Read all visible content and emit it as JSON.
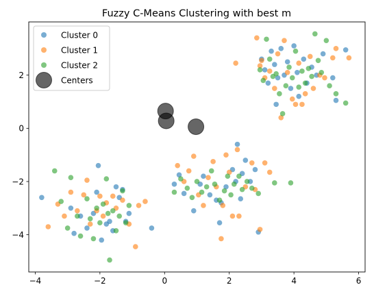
{
  "chart_data": {
    "type": "scatter",
    "title": "Fuzzy C-Means Clustering with best m",
    "xlabel": "",
    "ylabel": "",
    "xlim": [
      -4.2,
      6.2
    ],
    "ylim": [
      -5.4,
      4.0
    ],
    "xticks": [
      -4,
      -2,
      0,
      2,
      4,
      6
    ],
    "yticks": [
      -4,
      -2,
      0,
      2
    ],
    "grid": false,
    "legend_position": "top-left",
    "series": [
      {
        "name": "Cluster 0",
        "color": "#1f77b4",
        "points": [
          [
            -3.8,
            -2.6
          ],
          [
            -2.9,
            -3.0
          ],
          [
            -2.8,
            -3.95
          ],
          [
            -2.6,
            -3.3
          ],
          [
            -2.4,
            -3.75
          ],
          [
            -2.2,
            -3.2
          ],
          [
            -2.1,
            -2.4
          ],
          [
            -2.05,
            -1.4
          ],
          [
            -1.95,
            -4.2
          ],
          [
            -1.8,
            -3.6
          ],
          [
            -1.7,
            -3.5
          ],
          [
            -1.6,
            -3.85
          ],
          [
            -1.5,
            -2.2
          ],
          [
            -1.4,
            -2.6
          ],
          [
            -1.3,
            -2.3
          ],
          [
            -1.2,
            -3.5
          ],
          [
            -1.1,
            -3.2
          ],
          [
            -0.4,
            -3.75
          ],
          [
            0.3,
            -2.1
          ],
          [
            0.45,
            -1.75
          ],
          [
            0.6,
            -2.45
          ],
          [
            0.9,
            -3.1
          ],
          [
            1.1,
            -2.1
          ],
          [
            1.2,
            -1.8
          ],
          [
            1.4,
            -2.5
          ],
          [
            1.6,
            -2.7
          ],
          [
            1.7,
            -3.55
          ],
          [
            1.75,
            -2.8
          ],
          [
            1.9,
            -2.2
          ],
          [
            2.1,
            -1.55
          ],
          [
            2.2,
            -2.0
          ],
          [
            2.25,
            -0.6
          ],
          [
            2.35,
            -2.65
          ],
          [
            2.4,
            -1.7
          ],
          [
            2.5,
            -1.2
          ],
          [
            2.65,
            -2.0
          ],
          [
            2.8,
            -1.55
          ],
          [
            2.9,
            -3.9
          ],
          [
            3.0,
            2.6
          ],
          [
            3.1,
            2.2
          ],
          [
            3.2,
            1.7
          ],
          [
            3.3,
            2.9
          ],
          [
            3.4,
            2.4
          ],
          [
            3.45,
            0.9
          ],
          [
            3.5,
            1.9
          ],
          [
            3.6,
            3.0
          ],
          [
            3.7,
            2.0
          ],
          [
            3.8,
            2.5
          ],
          [
            3.9,
            1.5
          ],
          [
            4.0,
            3.1
          ],
          [
            4.1,
            2.1
          ],
          [
            4.15,
            1.2
          ],
          [
            4.3,
            2.6
          ],
          [
            4.4,
            1.7
          ],
          [
            4.55,
            2.3
          ],
          [
            4.7,
            2.0
          ],
          [
            4.9,
            2.8
          ],
          [
            5.2,
            1.9
          ],
          [
            5.3,
            1.05
          ],
          [
            5.6,
            2.95
          ]
        ]
      },
      {
        "name": "Cluster 1",
        "color": "#ff7f0e",
        "points": [
          [
            -3.6,
            -3.7
          ],
          [
            -3.3,
            -2.85
          ],
          [
            -3.1,
            -3.3
          ],
          [
            -2.9,
            -2.4
          ],
          [
            -2.7,
            -3.1
          ],
          [
            -2.5,
            -2.5
          ],
          [
            -2.4,
            -1.95
          ],
          [
            -2.3,
            -3.6
          ],
          [
            -2.1,
            -3.1
          ],
          [
            -2.0,
            -2.55
          ],
          [
            -1.9,
            -3.3
          ],
          [
            -1.8,
            -2.8
          ],
          [
            -1.6,
            -2.55
          ],
          [
            -1.5,
            -3.0
          ],
          [
            -1.3,
            -2.7
          ],
          [
            -1.1,
            -3.6
          ],
          [
            -0.9,
            -4.45
          ],
          [
            -0.8,
            -2.9
          ],
          [
            -0.6,
            -2.75
          ],
          [
            0.4,
            -1.4
          ],
          [
            0.6,
            -2.0
          ],
          [
            0.75,
            -1.6
          ],
          [
            0.9,
            -1.05
          ],
          [
            1.05,
            -2.5
          ],
          [
            1.2,
            -2.9
          ],
          [
            1.35,
            -1.85
          ],
          [
            1.5,
            -1.25
          ],
          [
            1.6,
            -2.2
          ],
          [
            1.75,
            -4.15
          ],
          [
            1.8,
            -2.9
          ],
          [
            1.9,
            -1.0
          ],
          [
            2.0,
            -1.65
          ],
          [
            2.1,
            -3.3
          ],
          [
            2.25,
            -0.8
          ],
          [
            2.3,
            -3.3
          ],
          [
            2.5,
            -2.2
          ],
          [
            2.7,
            -1.3
          ],
          [
            2.8,
            -2.3
          ],
          [
            2.95,
            -3.8
          ],
          [
            3.1,
            -1.3
          ],
          [
            3.25,
            -1.65
          ],
          [
            2.2,
            2.45
          ],
          [
            2.85,
            3.4
          ],
          [
            2.95,
            2.35
          ],
          [
            3.0,
            2.55
          ],
          [
            3.1,
            1.9
          ],
          [
            3.25,
            2.15
          ],
          [
            3.4,
            1.5
          ],
          [
            3.5,
            2.8
          ],
          [
            3.6,
            0.4
          ],
          [
            3.7,
            3.3
          ],
          [
            3.8,
            2.1
          ],
          [
            3.95,
            1.1
          ],
          [
            4.05,
            0.9
          ],
          [
            4.15,
            2.45
          ],
          [
            4.25,
            0.9
          ],
          [
            4.35,
            1.3
          ],
          [
            4.5,
            2.7
          ],
          [
            4.6,
            1.5
          ],
          [
            4.8,
            2.0
          ],
          [
            4.95,
            1.9
          ],
          [
            5.2,
            2.65
          ],
          [
            5.3,
            3.0
          ],
          [
            5.7,
            2.65
          ]
        ]
      },
      {
        "name": "Cluster 2",
        "color": "#2ca02c",
        "points": [
          [
            -3.4,
            -1.6
          ],
          [
            -3.2,
            -2.75
          ],
          [
            -3.0,
            -3.75
          ],
          [
            -2.9,
            -1.85
          ],
          [
            -2.7,
            -3.3
          ],
          [
            -2.6,
            -4.05
          ],
          [
            -2.4,
            -2.65
          ],
          [
            -2.3,
            -3.4
          ],
          [
            -2.2,
            -4.15
          ],
          [
            -2.1,
            -3.0
          ],
          [
            -2.0,
            -3.55
          ],
          [
            -1.9,
            -2.85
          ],
          [
            -1.8,
            -1.9
          ],
          [
            -1.75,
            -3.2
          ],
          [
            -1.7,
            -4.95
          ],
          [
            -1.6,
            -3.1
          ],
          [
            -1.5,
            -3.85
          ],
          [
            -1.4,
            -3.3
          ],
          [
            -1.3,
            -2.35
          ],
          [
            -1.2,
            -3.55
          ],
          [
            -1.1,
            -2.9
          ],
          [
            0.3,
            -2.4
          ],
          [
            0.5,
            -1.9
          ],
          [
            0.7,
            -2.25
          ],
          [
            0.85,
            -2.6
          ],
          [
            1.0,
            -2.0
          ],
          [
            1.15,
            -2.4
          ],
          [
            1.3,
            -2.2
          ],
          [
            1.45,
            -1.6
          ],
          [
            1.55,
            -2.1
          ],
          [
            1.7,
            -2.7
          ],
          [
            1.85,
            -2.35
          ],
          [
            1.95,
            -1.8
          ],
          [
            2.05,
            -2.5
          ],
          [
            2.15,
            -2.1
          ],
          [
            2.3,
            -1.8
          ],
          [
            2.4,
            -2.3
          ],
          [
            2.55,
            -2.0
          ],
          [
            2.7,
            -2.25
          ],
          [
            2.9,
            -2.45
          ],
          [
            3.4,
            -2.05
          ],
          [
            3.9,
            -2.05
          ],
          [
            2.95,
            2.2
          ],
          [
            3.05,
            1.8
          ],
          [
            3.15,
            3.35
          ],
          [
            3.25,
            2.6
          ],
          [
            3.35,
            1.95
          ],
          [
            3.45,
            2.05
          ],
          [
            3.55,
            1.3
          ],
          [
            3.65,
            0.55
          ],
          [
            3.75,
            1.6
          ],
          [
            3.85,
            2.3
          ],
          [
            3.95,
            1.9
          ],
          [
            4.05,
            2.9
          ],
          [
            4.15,
            1.55
          ],
          [
            4.25,
            2.15
          ],
          [
            4.35,
            1.7
          ],
          [
            4.45,
            2.25
          ],
          [
            4.55,
            1.95
          ],
          [
            4.65,
            3.55
          ],
          [
            4.75,
            2.55
          ],
          [
            4.85,
            2.1
          ],
          [
            5.0,
            3.3
          ],
          [
            5.1,
            1.6
          ],
          [
            5.3,
            1.3
          ],
          [
            5.6,
            0.95
          ]
        ]
      },
      {
        "name": "Centers",
        "color": "#000000",
        "points": [
          [
            0.03,
            0.65
          ],
          [
            0.05,
            0.28
          ],
          [
            0.97,
            0.06
          ]
        ]
      }
    ]
  }
}
